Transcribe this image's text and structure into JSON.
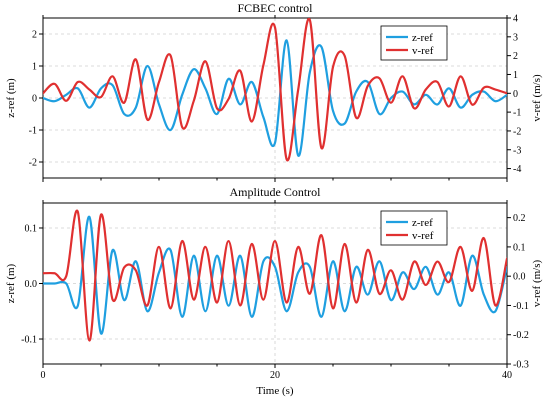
{
  "chart_data": [
    {
      "type": "line",
      "title": "FCBEC control",
      "xlabel": "",
      "ylabel": "z-ref (m)",
      "y2label": "v-ref (m/s)",
      "xlim": [
        0,
        40
      ],
      "ylim": [
        -2.5,
        2.5
      ],
      "y2lim": [
        -4.5,
        4
      ],
      "xticks": [
        0,
        20,
        40
      ],
      "xticklabels": [],
      "yticks": [
        -2,
        -1,
        0,
        1,
        2
      ],
      "y2ticks": [
        -4,
        -3,
        -2,
        -1,
        0,
        1,
        2,
        3,
        4
      ],
      "grid": true,
      "legend_position": "top-right",
      "series": [
        {
          "name": "z-ref",
          "axis": "left",
          "color": "#1f9fe0",
          "x": [
            0,
            1,
            2,
            3,
            4,
            5,
            6,
            7,
            8,
            9,
            10,
            11,
            12,
            13,
            14,
            15,
            16,
            17,
            18,
            19,
            20,
            21,
            22,
            23,
            24,
            25,
            26,
            27,
            28,
            29,
            30,
            31,
            32,
            33,
            34,
            35,
            36,
            37,
            38,
            39,
            40
          ],
          "values": [
            0,
            -0.1,
            0.1,
            0.3,
            -0.3,
            0.3,
            0.4,
            -0.5,
            -0.3,
            1.0,
            -0.2,
            -1.0,
            0.1,
            0.9,
            0.3,
            -0.5,
            0.6,
            -0.2,
            0.5,
            -0.6,
            -1.4,
            1.8,
            -1.8,
            0.8,
            1.6,
            -0.4,
            -0.8,
            0.2,
            0.5,
            -0.5,
            0.0,
            0.2,
            -0.2,
            0.1,
            -0.2,
            0.3,
            -0.3,
            0.1,
            0.2,
            -0.1,
            0.1
          ]
        },
        {
          "name": "v-ref",
          "axis": "right",
          "color": "#e03030",
          "x": [
            0,
            1,
            2,
            3,
            4,
            5,
            6,
            7,
            8,
            9,
            10,
            11,
            12,
            13,
            14,
            15,
            16,
            17,
            18,
            19,
            20,
            21,
            22,
            23,
            24,
            25,
            26,
            27,
            28,
            29,
            30,
            31,
            32,
            33,
            34,
            35,
            36,
            37,
            38,
            39,
            40
          ],
          "values": [
            0,
            0.5,
            -0.4,
            0.6,
            0.2,
            -0.2,
            0.9,
            -0.5,
            1.8,
            -1.4,
            0.6,
            2.0,
            -1.8,
            -0.4,
            1.7,
            -0.8,
            -0.3,
            1.2,
            -1.5,
            1.5,
            3.5,
            -3.5,
            0.2,
            3.9,
            -2.9,
            1.4,
            2.0,
            -1.3,
            0.4,
            0.8,
            -0.5,
            0.9,
            -0.8,
            0.2,
            0.6,
            -0.7,
            0.9,
            -0.6,
            0.3,
            0.2,
            0.0
          ]
        }
      ]
    },
    {
      "type": "line",
      "title": "Amplitude Control",
      "xlabel": "Time (s)",
      "ylabel": "z-ref (m)",
      "y2label": "v-ref (m/s)",
      "xlim": [
        0,
        40
      ],
      "ylim": [
        -0.145,
        0.145
      ],
      "y2lim": [
        -0.3,
        0.25
      ],
      "xticks": [
        0,
        20,
        40
      ],
      "xticklabels": [
        "0",
        "20",
        "40"
      ],
      "yticks": [
        -0.1,
        0.0,
        0.1
      ],
      "yticklabels": [
        "-0.1",
        "0.0",
        "0.1"
      ],
      "y2ticks": [
        -0.3,
        -0.2,
        -0.1,
        0.0,
        0.1,
        0.2
      ],
      "y2ticklabels": [
        "-0.3",
        "-0.2",
        "-0.1",
        "0.0",
        "0.1",
        "0.2"
      ],
      "grid": true,
      "legend_position": "top-right",
      "series": [
        {
          "name": "z-ref",
          "axis": "left",
          "color": "#1f9fe0",
          "x": [
            0,
            1,
            2,
            3,
            4,
            5,
            6,
            7,
            8,
            9,
            10,
            11,
            12,
            13,
            14,
            15,
            16,
            17,
            18,
            19,
            20,
            21,
            22,
            23,
            24,
            25,
            26,
            27,
            28,
            29,
            30,
            31,
            32,
            33,
            34,
            35,
            36,
            37,
            38,
            39,
            40
          ],
          "values": [
            0.0,
            0.0,
            0.0,
            -0.04,
            0.12,
            -0.09,
            0.06,
            -0.03,
            0.04,
            -0.05,
            0.02,
            0.06,
            -0.06,
            0.05,
            -0.05,
            0.05,
            -0.04,
            0.05,
            -0.06,
            0.04,
            0.03,
            -0.05,
            0.02,
            0.03,
            -0.06,
            0.04,
            -0.05,
            0.03,
            -0.02,
            0.04,
            -0.03,
            0.02,
            -0.01,
            0.03,
            -0.02,
            0.02,
            -0.04,
            0.05,
            -0.02,
            -0.05,
            0.03
          ]
        },
        {
          "name": "v-ref",
          "axis": "right",
          "color": "#e03030",
          "x": [
            0,
            1,
            2,
            3,
            4,
            5,
            6,
            7,
            8,
            9,
            10,
            11,
            12,
            13,
            14,
            15,
            16,
            17,
            18,
            19,
            20,
            21,
            22,
            23,
            24,
            25,
            26,
            27,
            28,
            29,
            30,
            31,
            32,
            33,
            34,
            35,
            36,
            37,
            38,
            39,
            40
          ],
          "values": [
            0.01,
            0.01,
            0.0,
            0.22,
            -0.22,
            0.21,
            -0.08,
            0.03,
            0.02,
            -0.1,
            0.1,
            -0.11,
            0.12,
            -0.08,
            0.1,
            -0.09,
            0.12,
            -0.1,
            0.11,
            -0.08,
            0.12,
            -0.09,
            0.1,
            -0.06,
            0.14,
            -0.11,
            0.11,
            -0.09,
            0.09,
            -0.06,
            0.02,
            -0.08,
            0.05,
            -0.03,
            0.05,
            -0.02,
            0.1,
            -0.05,
            0.13,
            -0.1,
            0.06
          ]
        }
      ]
    }
  ]
}
